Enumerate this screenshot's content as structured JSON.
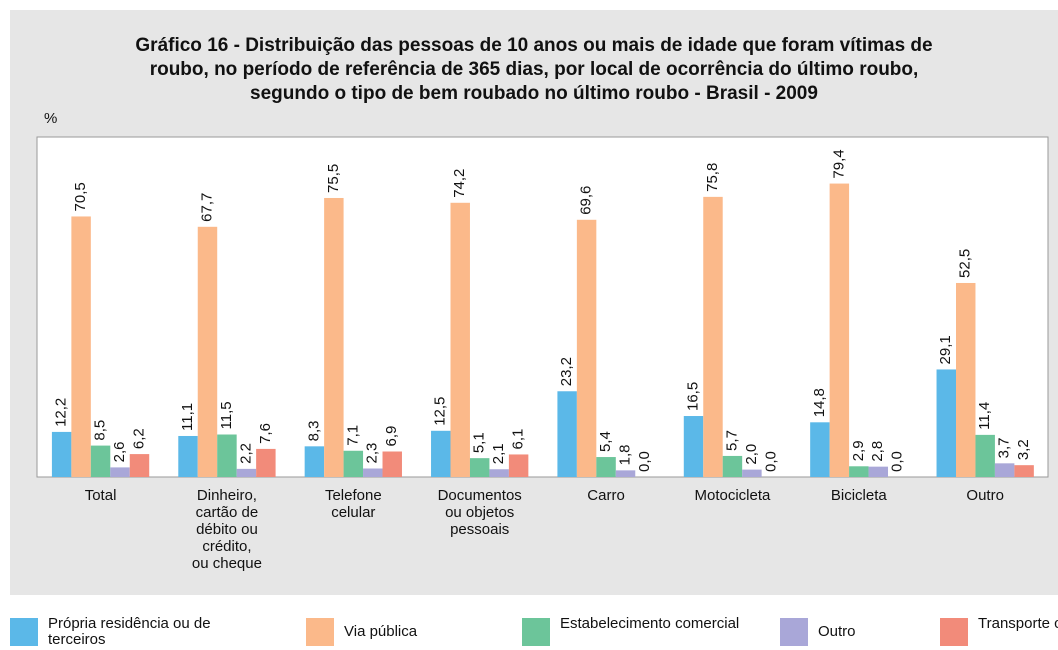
{
  "chart_data": {
    "type": "bar",
    "title": "Gráfico 16 -  Distribuição das pessoas de 10 anos ou mais de idade que foram vítimas de\nroubo, no período de referência de 365 dias, por local de ocorrência do último roubo,\nsegundo o tipo de bem roubado no último roubo - Brasil - 2009",
    "y_label": "%",
    "categories": [
      "Total",
      "Dinheiro,\ncartão de\ndébito ou\ncrédito,\nou cheque",
      "Telefone\ncelular",
      "Documentos\nou objetos\npessoais",
      "Carro",
      "Motocicleta",
      "Bicicleta",
      "Outro"
    ],
    "series": [
      {
        "name": "Própria residência ou de terceiros",
        "color": "#5bb8e8",
        "values": [
          12.2,
          11.1,
          8.3,
          12.5,
          23.2,
          16.5,
          14.8,
          29.1
        ],
        "value_labels": [
          "12,2",
          "11,1",
          "8,3",
          "12,5",
          "23,2",
          "16,5",
          "14,8",
          "29,1"
        ]
      },
      {
        "name": "Via pública",
        "color": "#fbb98a",
        "values": [
          70.5,
          67.7,
          75.5,
          74.2,
          69.6,
          75.8,
          79.4,
          52.5
        ],
        "value_labels": [
          "70,5",
          "67,7",
          "75,5",
          "74,2",
          "69,6",
          "75,8",
          "79,4",
          "52,5"
        ]
      },
      {
        "name": "Estabelecimento comercial",
        "color": "#6cc59a",
        "values": [
          8.5,
          11.5,
          7.1,
          5.1,
          5.4,
          5.7,
          2.9,
          11.4
        ],
        "value_labels": [
          "8,5",
          "11,5",
          "7,1",
          "5,1",
          "5,4",
          "5,7",
          "2,9",
          "11,4"
        ]
      },
      {
        "name": "Outro",
        "color": "#a9a7d8",
        "values": [
          2.6,
          2.2,
          2.3,
          2.1,
          1.8,
          2.0,
          2.8,
          3.7
        ],
        "value_labels": [
          "2,6",
          "2,2",
          "2,3",
          "2,1",
          "1,8",
          "2,0",
          "2,8",
          "3,7"
        ]
      },
      {
        "name": "Transporte coletivo",
        "color": "#f28b7a",
        "values": [
          6.2,
          7.6,
          6.9,
          6.1,
          0.0,
          0.0,
          0.0,
          3.2
        ],
        "value_labels": [
          "6,2",
          "7,6",
          "6,9",
          "6,1",
          "0,0",
          "0,0",
          "0,0",
          "3,2"
        ]
      }
    ],
    "ylim": [
      0,
      92
    ]
  }
}
